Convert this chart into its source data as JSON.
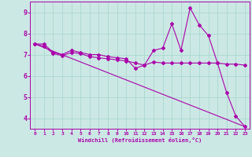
{
  "xlabel": "Windchill (Refroidissement éolien,°C)",
  "background_color": "#cce8e4",
  "grid_color": "#aad8d0",
  "line_color": "#aa00aa",
  "xlim": [
    -0.5,
    23.5
  ],
  "ylim": [
    3.5,
    9.5
  ],
  "xticks": [
    0,
    1,
    2,
    3,
    4,
    5,
    6,
    7,
    8,
    9,
    10,
    11,
    12,
    13,
    14,
    15,
    16,
    17,
    18,
    19,
    20,
    21,
    22,
    23
  ],
  "yticks": [
    4,
    5,
    6,
    7,
    8,
    9
  ],
  "series": [
    {
      "x": [
        0,
        1,
        2,
        3,
        4,
        5,
        6,
        7,
        8,
        9,
        10,
        11,
        12,
        13,
        14,
        15,
        16,
        17,
        18,
        19,
        20,
        21,
        22,
        23
      ],
      "y": [
        7.5,
        7.5,
        7.1,
        7.0,
        7.2,
        7.1,
        7.0,
        7.0,
        6.9,
        6.85,
        6.8,
        6.35,
        6.5,
        7.2,
        7.3,
        8.45,
        7.2,
        9.2,
        8.4,
        7.9,
        6.6,
        5.2,
        4.1,
        3.6
      ],
      "has_markers": true
    },
    {
      "x": [
        0,
        1,
        2,
        3,
        4,
        5,
        6,
        7,
        8,
        9,
        10,
        11,
        12,
        13,
        14,
        15,
        16,
        17,
        18,
        19,
        20,
        21,
        22,
        23
      ],
      "y": [
        7.5,
        7.4,
        7.05,
        6.95,
        7.1,
        7.05,
        6.9,
        6.85,
        6.8,
        6.75,
        6.7,
        6.6,
        6.5,
        6.65,
        6.6,
        6.6,
        6.6,
        6.6,
        6.6,
        6.6,
        6.6,
        6.55,
        6.55,
        6.5
      ],
      "has_markers": true
    },
    {
      "x": [
        0,
        23
      ],
      "y": [
        7.5,
        3.6
      ],
      "has_markers": false
    }
  ]
}
